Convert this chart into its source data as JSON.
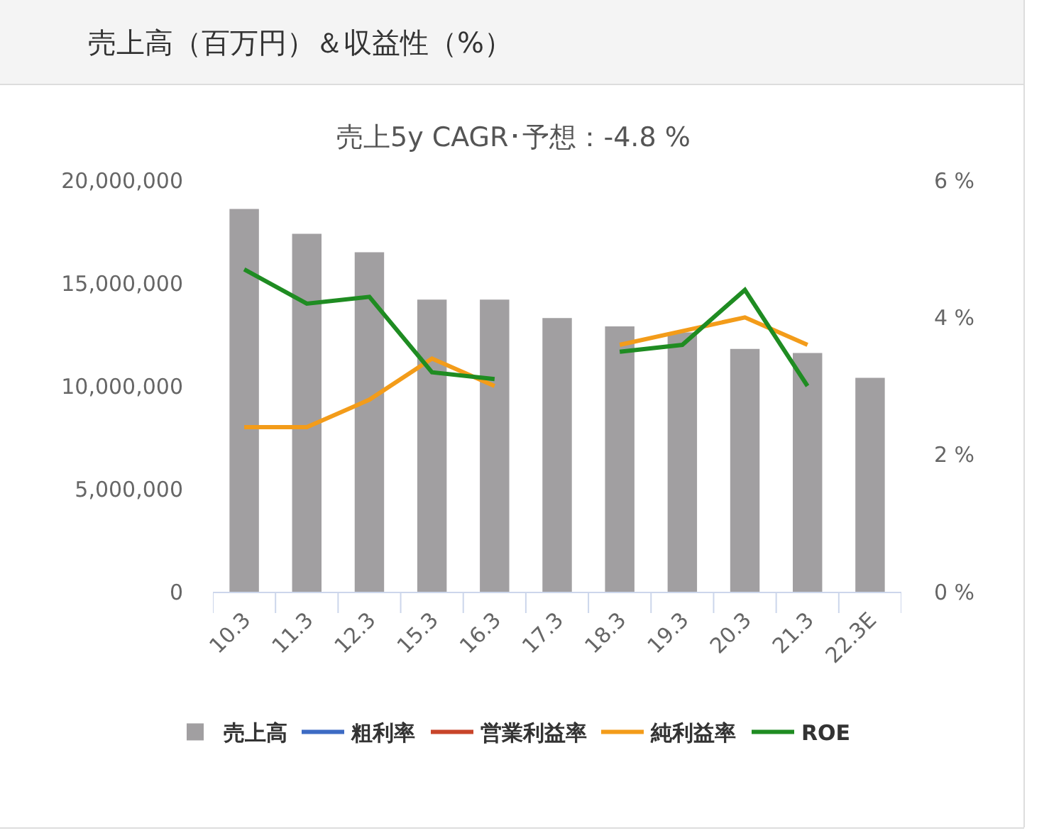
{
  "chart_data": {
    "type": "bar",
    "title": "売上高（百万円）＆収益性（%）",
    "subtitle": "売上5y CAGR･予想：-4.8 %",
    "categories": [
      "10.3",
      "11.3",
      "12.3",
      "15.3",
      "16.3",
      "17.3",
      "18.3",
      "19.3",
      "20.3",
      "21.3",
      "22.3E"
    ],
    "series": [
      {
        "name": "売上高",
        "color": "#a19fa1",
        "values": [
          18600000,
          17400000,
          16500000,
          14200000,
          14200000,
          13300000,
          12900000,
          12600000,
          11800000,
          11600000,
          10400000
        ]
      },
      {
        "name": "粗利率",
        "type": "line",
        "axis": "y2",
        "color": "#3d6bc4",
        "values": [
          null,
          null,
          null,
          null,
          null,
          null,
          null,
          null,
          null,
          null,
          null
        ]
      },
      {
        "name": "営業利益率",
        "type": "line",
        "axis": "y2",
        "color": "#c8452a",
        "values": [
          null,
          null,
          null,
          null,
          null,
          null,
          null,
          null,
          null,
          null,
          null
        ]
      },
      {
        "name": "純利益率",
        "type": "line",
        "axis": "y2",
        "color": "#f39c1a",
        "values": [
          2.4,
          2.4,
          2.8,
          3.4,
          3.0,
          null,
          3.6,
          3.8,
          4.0,
          3.6,
          null
        ]
      },
      {
        "name": "ROE",
        "type": "line",
        "axis": "y2",
        "color": "#1f8c22",
        "values": [
          4.7,
          4.2,
          4.3,
          3.2,
          3.1,
          null,
          3.5,
          3.6,
          4.4,
          3.0,
          null
        ]
      }
    ],
    "ylim": [
      0,
      20000000
    ],
    "yticks": [
      0,
      {
        "value": 5000000,
        "label": "5,000,000"
      },
      {
        "value": 10000000,
        "label": "10,000,000"
      },
      {
        "value": 15000000,
        "label": "15,000,000"
      },
      {
        "value": 20000000,
        "label": "20,000,000"
      }
    ],
    "y2lim": [
      0,
      6
    ],
    "y2ticks": [
      {
        "value": 0,
        "label": "0 %"
      },
      {
        "value": 2,
        "label": "2 %"
      },
      {
        "value": 4,
        "label": "4 %"
      },
      {
        "value": 6,
        "label": "6 %"
      }
    ],
    "legend": "bottom"
  }
}
